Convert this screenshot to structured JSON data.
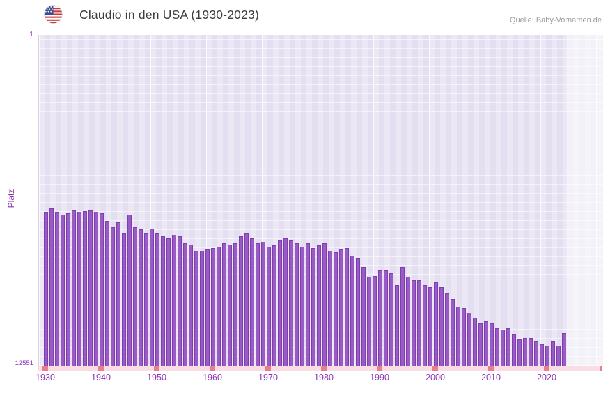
{
  "header": {
    "title": "Claudio in den USA (1930-2023)",
    "source": "Quelle: Baby-Vornamen.de"
  },
  "chart_data": {
    "type": "bar",
    "title": "Claudio in den USA (1930-2023)",
    "xlabel": "",
    "ylabel": "Platz",
    "y_axis": {
      "top_label": "1",
      "bottom_label": "12551",
      "min": 1,
      "max": 12551,
      "scale": "log",
      "inverted": true
    },
    "start_year": 1930,
    "end_year": 2023,
    "x_ticks": [
      1930,
      1940,
      1950,
      1960,
      1970,
      1980,
      1990,
      2000,
      2010,
      2020
    ],
    "edge_tick_year": 2030,
    "values": [
      160,
      140,
      160,
      168,
      163,
      150,
      155,
      152,
      150,
      155,
      163,
      200,
      240,
      210,
      290,
      168,
      240,
      255,
      290,
      250,
      290,
      310,
      330,
      300,
      310,
      380,
      395,
      470,
      470,
      450,
      435,
      420,
      380,
      395,
      380,
      310,
      290,
      330,
      380,
      365,
      420,
      400,
      350,
      330,
      350,
      380,
      420,
      380,
      440,
      400,
      380,
      470,
      490,
      450,
      435,
      540,
      590,
      740,
      980,
      960,
      830,
      830,
      900,
      1250,
      740,
      980,
      1080,
      1080,
      1250,
      1320,
      1150,
      1320,
      1580,
      1850,
      2300,
      2400,
      2780,
      3200,
      3700,
      3550,
      3700,
      4250,
      4450,
      4250,
      5100,
      5900,
      5700,
      5700,
      6200,
      6800,
      7100,
      6200,
      7100,
      4900
    ],
    "legend": null,
    "grid": true,
    "colors": {
      "bar": "#9a5bc7",
      "bar_border": "#7d3fae",
      "axis_text": "#8b35b5",
      "tick": "#ea7e8d",
      "axis_band": "#f8dde4",
      "plot_bg": "#e9e4f2"
    }
  }
}
